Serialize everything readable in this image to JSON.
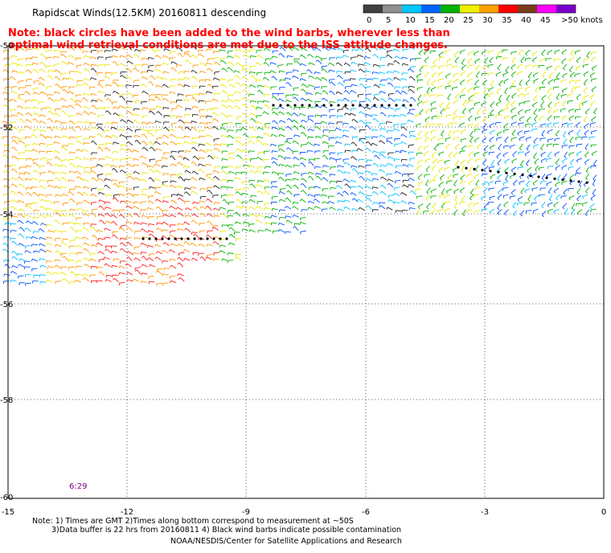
{
  "title": "Rapidscat Winds(12.5KM) 20160811 descending",
  "note_lines": [
    "Note: black circles have been added to the wind barbs, wherever less than",
    "optimal wind retrieval conditions are met due to the ISS attitude changes."
  ],
  "legend": {
    "labels": [
      "0",
      "5",
      "10",
      "15",
      "20",
      "25",
      "30",
      "35",
      "40",
      "45",
      ">50 knots"
    ],
    "colors": [
      "#404040",
      "#909090",
      "#00c8ff",
      "#0064ff",
      "#00b400",
      "#f0f000",
      "#ffa000",
      "#ff0000",
      "#7a3b1a",
      "#ff00ff",
      "#7a00c8"
    ]
  },
  "axes": {
    "lat_labels": [
      "-50",
      "-52",
      "-54",
      "-56",
      "-58",
      "-60"
    ],
    "lon_labels": [
      "-15",
      "-12",
      "-9",
      "-6",
      "-3",
      "0"
    ]
  },
  "timestamp": "6:29",
  "footnote": {
    "line1": "Note: 1) Times are GMT 2)Times along bottom correspond to measurement at ~50S",
    "line2": "3)Data buffer is 22 hrs from 20160811 4) Black wind barbs indicate possible contamination",
    "credit": "NOAA/NESDIS/Center for Satellite Applications and Research"
  }
}
